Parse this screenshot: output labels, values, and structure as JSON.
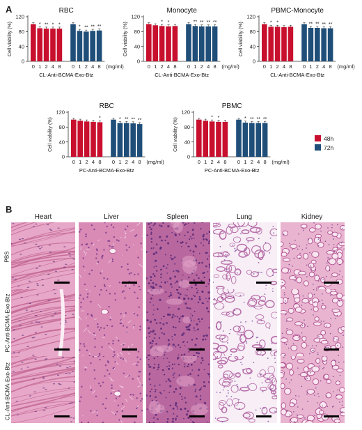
{
  "figure": {
    "panel_a_letter": "A",
    "panel_b_letter": "B",
    "legend": [
      {
        "name": "48h",
        "color": "#c8102e"
      },
      {
        "name": "72h",
        "color": "#1f4e79"
      }
    ],
    "unit_label": "(mg/ml)",
    "ylabel": "Cell viability (%)"
  },
  "chart_data": [
    {
      "type": "bar",
      "title": "RBC",
      "xlabel": "CL-Anti-BCMA-Exo-Btz",
      "ylabel": "Cell viability (%)",
      "ylim": [
        0,
        120
      ],
      "yticks": [
        0,
        40,
        80,
        120
      ],
      "categories": [
        "0",
        "1",
        "2",
        "4",
        "8"
      ],
      "series": [
        {
          "name": "48h",
          "values": [
            100,
            89,
            88,
            88,
            88
          ],
          "sig": [
            "",
            "*",
            "**",
            "*",
            "*"
          ]
        },
        {
          "name": "72h",
          "values": [
            100,
            82,
            80,
            82,
            83
          ],
          "sig": [
            "",
            "*",
            "**",
            "**",
            "**"
          ]
        }
      ]
    },
    {
      "type": "bar",
      "title": "Monocyte",
      "xlabel": "CL-Anti-BCMA-Exo-Btz",
      "ylabel": "Cell viability (%)",
      "ylim": [
        0,
        120
      ],
      "yticks": [
        0,
        40,
        80,
        120
      ],
      "categories": [
        "0",
        "1",
        "2",
        "4",
        "8"
      ],
      "series": [
        {
          "name": "48h",
          "values": [
            100,
            97,
            95,
            94,
            95
          ],
          "sig": [
            "",
            "",
            "*",
            "*",
            ""
          ]
        },
        {
          "name": "72h",
          "values": [
            100,
            95,
            94,
            94,
            94
          ],
          "sig": [
            "",
            "**",
            "**",
            "**",
            "**"
          ]
        }
      ]
    },
    {
      "type": "bar",
      "title": "PBMC-Monocyte",
      "xlabel": "CL-Anti-BCMA-Exo-Btz",
      "ylabel": "Cell viability (%)",
      "ylim": [
        0,
        120
      ],
      "yticks": [
        0,
        40,
        80,
        120
      ],
      "categories": [
        "0",
        "1",
        "2",
        "4",
        "8"
      ],
      "series": [
        {
          "name": "48h",
          "values": [
            100,
            93,
            93,
            92,
            93
          ],
          "sig": [
            "",
            "*",
            "*",
            "",
            ""
          ]
        },
        {
          "name": "72h",
          "values": [
            100,
            90,
            90,
            89,
            89
          ],
          "sig": [
            "",
            "**",
            "**",
            "**",
            "**"
          ]
        }
      ]
    },
    {
      "type": "bar",
      "title": "RBC",
      "xlabel": "PC-Anti-BCMA-Exo-Btz",
      "ylabel": "Cell viability (%)",
      "ylim": [
        0,
        120
      ],
      "yticks": [
        0,
        40,
        80,
        120
      ],
      "categories": [
        "0",
        "1",
        "2",
        "4",
        "8"
      ],
      "series": [
        {
          "name": "48h",
          "values": [
            100,
            97,
            95,
            94,
            93
          ],
          "sig": [
            "",
            "",
            "",
            "",
            "*"
          ]
        },
        {
          "name": "72h",
          "values": [
            100,
            91,
            91,
            90,
            88
          ],
          "sig": [
            "",
            "*",
            "**",
            "**",
            "**"
          ]
        }
      ]
    },
    {
      "type": "bar",
      "title": "PBMC",
      "xlabel": "PC-Anti-BCMA-Exo-Btz",
      "ylabel": "Cell viability (%)",
      "ylim": [
        0,
        120
      ],
      "yticks": [
        0,
        40,
        80,
        120
      ],
      "categories": [
        "0",
        "1",
        "2",
        "4",
        "8"
      ],
      "series": [
        {
          "name": "48h",
          "values": [
            100,
            97,
            95,
            94,
            94
          ],
          "sig": [
            "",
            "",
            "*",
            "*",
            ""
          ]
        },
        {
          "name": "72h",
          "values": [
            100,
            92,
            91,
            91,
            91
          ],
          "sig": [
            "",
            "*",
            "**",
            "**",
            "**"
          ]
        }
      ]
    }
  ],
  "histology": {
    "columns": [
      "Heart",
      "Liver",
      "Spleen",
      "Lung",
      "Kidney"
    ],
    "rows": [
      "PBS",
      "PC-Anti-BCMA-Exo-Btz",
      "CL-Anti-BCMA-Exo-Btz"
    ]
  }
}
